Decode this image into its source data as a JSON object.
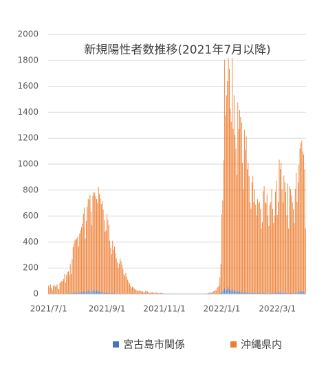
{
  "chart_data": {
    "type": "bar",
    "stacked": true,
    "title": "新規陽性者数推移(2021年7月以降)",
    "categories": [
      "2021/7/1",
      null,
      null,
      null,
      null,
      null,
      null,
      null,
      null,
      null,
      null,
      null,
      null,
      null,
      null,
      null,
      null,
      null,
      null,
      null,
      null,
      null,
      null,
      null,
      null,
      null,
      null,
      null,
      null,
      null,
      null,
      null,
      null,
      null,
      null,
      null,
      null,
      null,
      null,
      null,
      null,
      null,
      null,
      null,
      null,
      null,
      null,
      null,
      null,
      null,
      null,
      null,
      null,
      null,
      null,
      null,
      null,
      null,
      null,
      null,
      null,
      null,
      "2021/9/1",
      null,
      null,
      null,
      null,
      null,
      null,
      null,
      null,
      null,
      null,
      null,
      null,
      null,
      null,
      null,
      null,
      null,
      null,
      null,
      null,
      null,
      null,
      null,
      null,
      null,
      null,
      null,
      null,
      null,
      null,
      null,
      null,
      null,
      null,
      null,
      null,
      null,
      null,
      null,
      null,
      null,
      null,
      null,
      null,
      null,
      null,
      null,
      null,
      null,
      null,
      null,
      null,
      null,
      null,
      null,
      null,
      null,
      null,
      null,
      null,
      "2021/11/1",
      null,
      null,
      null,
      null,
      null,
      null,
      null,
      null,
      null,
      null,
      null,
      null,
      null,
      null,
      null,
      null,
      null,
      null,
      null,
      null,
      null,
      null,
      null,
      null,
      null,
      null,
      null,
      null,
      null,
      null,
      null,
      null,
      null,
      null,
      null,
      null,
      null,
      null,
      null,
      null,
      null,
      null,
      null,
      null,
      null,
      null,
      null,
      null,
      null,
      null,
      null,
      null,
      null,
      null,
      null,
      null,
      null,
      null,
      null,
      null,
      "2022/1/1",
      null,
      null,
      null,
      null,
      null,
      null,
      null,
      null,
      null,
      null,
      null,
      null,
      null,
      null,
      null,
      null,
      null,
      null,
      null,
      null,
      null,
      null,
      null,
      null,
      null,
      null,
      null,
      null,
      null,
      null,
      null,
      null,
      null,
      null,
      null,
      null,
      null,
      null,
      null,
      null,
      null,
      null,
      null,
      null,
      null,
      null,
      null,
      null,
      null,
      null,
      null,
      null,
      null,
      null,
      null,
      null,
      null,
      null,
      "2022/3/1",
      null,
      null,
      null,
      null,
      null,
      null,
      null,
      null,
      null,
      null,
      null,
      null,
      null,
      null,
      null,
      null,
      null,
      null,
      null,
      null,
      null,
      null,
      null,
      null,
      null,
      null,
      null,
      null,
      null,
      null
    ],
    "series": [
      {
        "name": "宮古島市関係",
        "color": "#4472c4",
        "values": [
          2,
          0,
          3,
          1,
          0,
          2,
          4,
          1,
          3,
          2,
          0,
          1,
          5,
          3,
          2,
          4,
          6,
          3,
          2,
          5,
          8,
          4,
          6,
          10,
          3,
          8,
          12,
          9,
          15,
          10,
          8,
          12,
          6,
          15,
          10,
          14,
          20,
          18,
          25,
          8,
          12,
          22,
          30,
          18,
          25,
          15,
          10,
          28,
          35,
          20,
          22,
          30,
          18,
          25,
          20,
          15,
          12,
          18,
          10,
          8,
          6,
          10,
          15,
          12,
          8,
          10,
          6,
          5,
          10,
          8,
          6,
          5,
          4,
          3,
          2,
          5,
          4,
          3,
          2,
          1,
          2,
          1,
          3,
          2,
          1,
          0,
          1,
          0,
          1,
          0,
          1,
          0,
          0,
          1,
          0,
          0,
          1,
          0,
          0,
          1,
          0,
          0,
          0,
          1,
          0,
          0,
          0,
          0,
          1,
          0,
          0,
          0,
          0,
          0,
          1,
          0,
          0,
          0,
          0,
          0,
          0,
          0,
          0,
          0,
          0,
          0,
          0,
          0,
          0,
          0,
          0,
          0,
          0,
          0,
          0,
          0,
          0,
          0,
          0,
          0,
          0,
          0,
          0,
          0,
          0,
          0,
          0,
          0,
          0,
          0,
          0,
          0,
          0,
          0,
          0,
          0,
          0,
          0,
          0,
          0,
          0,
          0,
          0,
          0,
          0,
          0,
          0,
          0,
          0,
          0,
          0,
          0,
          0,
          0,
          0,
          0,
          0,
          0,
          1,
          2,
          3,
          5,
          8,
          10,
          15,
          20,
          30,
          45,
          25,
          30,
          40,
          55,
          35,
          30,
          25,
          40,
          20,
          30,
          25,
          20,
          15,
          25,
          20,
          18,
          15,
          20,
          12,
          10,
          15,
          12,
          14,
          10,
          12,
          8,
          6,
          8,
          10,
          12,
          6,
          8,
          7,
          5,
          9,
          8,
          10,
          6,
          4,
          5,
          12,
          10,
          8,
          6,
          9,
          5,
          4,
          7,
          8,
          10,
          6,
          5,
          6,
          9,
          12,
          8,
          10,
          15,
          12,
          10,
          8,
          6,
          12,
          10,
          8,
          6,
          10,
          5,
          9,
          8,
          10,
          6,
          5,
          4,
          10,
          12,
          8,
          10,
          15,
          20,
          25,
          22,
          18,
          15,
          12,
          6
        ]
      },
      {
        "name": "沖縄県内",
        "color": "#ed7d31",
        "values": [
          64,
          50,
          70,
          45,
          30,
          60,
          68,
          55,
          60,
          72,
          40,
          35,
          80,
          90,
          100,
          95,
          110,
          150,
          85,
          140,
          160,
          170,
          140,
          220,
          150,
          260,
          350,
          380,
          400,
          410,
          420,
          430,
          360,
          450,
          480,
          500,
          520,
          600,
          640,
          420,
          550,
          650,
          700,
          710,
          740,
          620,
          520,
          730,
          750,
          760,
          730,
          700,
          680,
          800,
          750,
          720,
          680,
          700,
          640,
          560,
          470,
          480,
          600,
          560,
          520,
          400,
          350,
          300,
          400,
          330,
          360,
          310,
          270,
          240,
          200,
          230,
          270,
          250,
          220,
          190,
          150,
          140,
          160,
          130,
          110,
          90,
          80,
          60,
          45,
          55,
          50,
          40,
          35,
          30,
          25,
          20,
          30,
          25,
          22,
          18,
          20,
          15,
          12,
          20,
          25,
          18,
          14,
          10,
          8,
          12,
          15,
          10,
          8,
          6,
          9,
          12,
          7,
          5,
          6,
          8,
          10,
          5,
          4,
          3,
          2,
          4,
          1,
          2,
          3,
          2,
          1,
          0,
          2,
          3,
          1,
          2,
          0,
          1,
          2,
          3,
          1,
          0,
          1,
          2,
          0,
          1,
          2,
          1,
          0,
          1,
          2,
          1,
          0,
          1,
          0,
          2,
          1,
          0,
          1,
          0,
          1,
          2,
          1,
          0,
          1,
          0,
          2,
          1,
          3,
          5,
          8,
          10,
          12,
          9,
          15,
          20,
          22,
          30,
          25,
          45,
          50,
          60,
          120,
          220,
          600,
          700,
          1000,
          1760,
          1350,
          1500,
          1600,
          1820,
          1700,
          1400,
          1300,
          1830,
          1250,
          1500,
          1200,
          1100,
          900,
          1450,
          1250,
          1400,
          1350,
          1300,
          1000,
          800,
          1250,
          1100,
          1200,
          950,
          1000,
          900,
          700,
          650,
          850,
          900,
          700,
          800,
          680,
          600,
          720,
          690,
          700,
          650,
          500,
          550,
          780,
          820,
          700,
          690,
          760,
          600,
          520,
          680,
          700,
          800,
          650,
          540,
          600,
          780,
          860,
          600,
          700,
          1020,
          950,
          1000,
          800,
          700,
          900,
          850,
          780,
          600,
          840,
          500,
          820,
          800,
          750,
          700,
          650,
          540,
          800,
          920,
          700,
          850,
          980,
          1100,
          1140,
          1160,
          1080,
          1060,
          950,
          500
        ]
      }
    ],
    "ylim": [
      0,
      2000
    ],
    "yticks": [
      0,
      200,
      400,
      600,
      800,
      1000,
      1200,
      1400,
      1600,
      1800,
      2000
    ],
    "grid": true,
    "legend": "bottom"
  }
}
